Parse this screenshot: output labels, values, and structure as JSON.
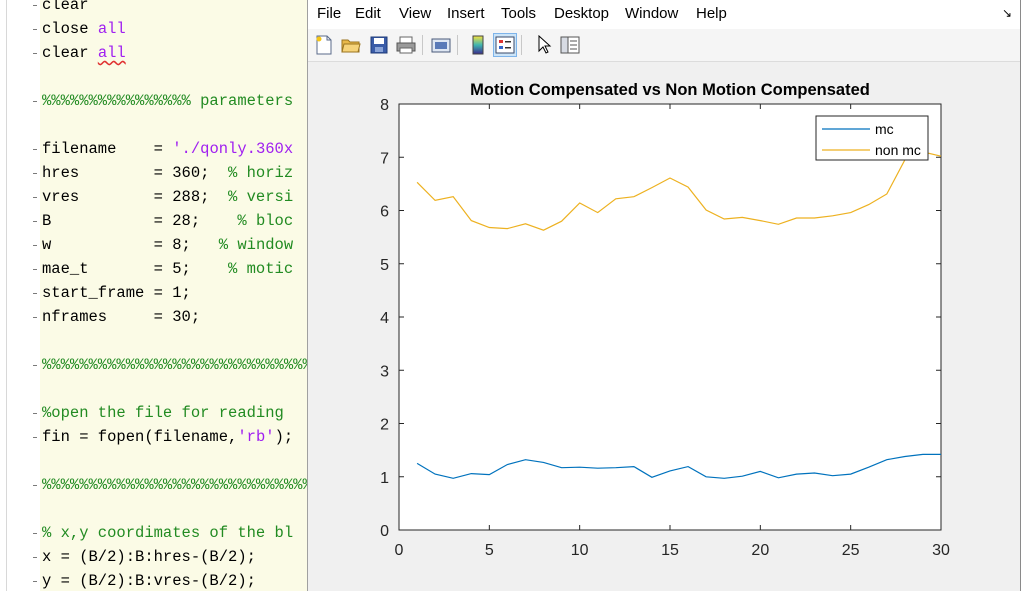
{
  "editor": {
    "lines": [
      [
        {
          "t": "clear",
          "c": "kw"
        }
      ],
      [
        {
          "t": "close ",
          "c": "kw"
        },
        {
          "t": "all",
          "c": "str"
        }
      ],
      [
        {
          "t": "clear ",
          "c": "kw"
        },
        {
          "t": "all",
          "c": "str",
          "squiggle": true
        }
      ],
      [],
      [
        {
          "t": "%%%%%%%%%%%%%%%% parameters",
          "c": "cmt"
        }
      ],
      [],
      [
        {
          "t": "filename    = ",
          "c": "kw"
        },
        {
          "t": "'./qonly.360x",
          "c": "str"
        }
      ],
      [
        {
          "t": "hres        = 360;  ",
          "c": "kw"
        },
        {
          "t": "% horiz",
          "c": "cmt"
        }
      ],
      [
        {
          "t": "vres        = 288;  ",
          "c": "kw"
        },
        {
          "t": "% versi",
          "c": "cmt"
        }
      ],
      [
        {
          "t": "B           = 28;    ",
          "c": "kw"
        },
        {
          "t": "% bloc",
          "c": "cmt"
        }
      ],
      [
        {
          "t": "w           = 8;   ",
          "c": "kw"
        },
        {
          "t": "% window",
          "c": "cmt"
        }
      ],
      [
        {
          "t": "mae_t       = 5;    ",
          "c": "kw"
        },
        {
          "t": "% motic",
          "c": "cmt"
        }
      ],
      [
        {
          "t": "start_frame = 1;",
          "c": "kw"
        }
      ],
      [
        {
          "t": "nframes     = 30;",
          "c": "kw"
        }
      ],
      [],
      [
        {
          "t": "%%%%%%%%%%%%%%%%%%%%%%%%%%%%%%%",
          "c": "cmt"
        }
      ],
      [],
      [
        {
          "t": "%open the file for reading",
          "c": "cmt"
        }
      ],
      [
        {
          "t": "fin = fopen(filename,",
          "c": "kw"
        },
        {
          "t": "'rb'",
          "c": "str"
        },
        {
          "t": ");",
          "c": "kw"
        }
      ],
      [],
      [
        {
          "t": "%%%%%%%%%%%%%%%%%%%%%%%%%%%%%%%",
          "c": "cmt"
        }
      ],
      [],
      [
        {
          "t": "% x,y coordimates of the bl",
          "c": "cmt"
        }
      ],
      [
        {
          "t": "x = (B/2):B:hres-(B/2);",
          "c": "kw"
        }
      ],
      [
        {
          "t": "y = (B/2):B:vres-(B/2);",
          "c": "kw"
        }
      ]
    ],
    "colors": {
      "kw": "#000000",
      "str": "#a020f0",
      "cmt": "#228b22"
    }
  },
  "figure": {
    "menu": [
      "File",
      "Edit",
      "View",
      "Insert",
      "Tools",
      "Desktop",
      "Window",
      "Help"
    ],
    "menu_dock_icon": "dock-arrow-icon",
    "toolbar": [
      {
        "name": "new-figure-icon",
        "active": false
      },
      {
        "name": "open-file-icon",
        "active": false
      },
      {
        "name": "save-figure-icon",
        "active": false
      },
      {
        "name": "print-figure-icon",
        "active": false
      },
      {
        "sep": true
      },
      {
        "name": "link-plot-icon",
        "active": false
      },
      {
        "sep": true
      },
      {
        "name": "insert-colorbar-icon",
        "active": false
      },
      {
        "name": "insert-legend-icon",
        "active": true
      },
      {
        "sep": true
      },
      {
        "name": "edit-plot-cursor-icon",
        "active": false
      },
      {
        "name": "property-inspector-icon",
        "active": false
      }
    ]
  },
  "chart_data": {
    "type": "line",
    "title": "Motion Compensated vs Non Motion Compensated",
    "xlabel": "",
    "ylabel": "",
    "xlim": [
      0,
      30
    ],
    "ylim": [
      0,
      8
    ],
    "xticks": [
      0,
      5,
      10,
      15,
      20,
      25,
      30
    ],
    "yticks": [
      0,
      1,
      2,
      3,
      4,
      5,
      6,
      7,
      8
    ],
    "grid": false,
    "legend_position": "top-right",
    "x": [
      1,
      2,
      3,
      4,
      5,
      6,
      7,
      8,
      9,
      10,
      11,
      12,
      13,
      14,
      15,
      16,
      17,
      18,
      19,
      20,
      21,
      22,
      23,
      24,
      25,
      26,
      27,
      28,
      29,
      30
    ],
    "series": [
      {
        "name": "mc",
        "color": "#0072bd",
        "values": [
          1.25,
          1.05,
          0.97,
          1.06,
          1.04,
          1.23,
          1.32,
          1.27,
          1.17,
          1.18,
          1.16,
          1.17,
          1.19,
          0.99,
          1.11,
          1.19,
          1.0,
          0.97,
          1.01,
          1.1,
          0.98,
          1.05,
          1.07,
          1.02,
          1.05,
          1.18,
          1.32,
          1.38,
          1.42,
          1.42
        ]
      },
      {
        "name": "non mc",
        "color": "#edb120",
        "values": [
          6.53,
          6.19,
          6.26,
          5.81,
          5.68,
          5.66,
          5.75,
          5.63,
          5.8,
          6.14,
          5.96,
          6.22,
          6.26,
          6.43,
          6.61,
          6.44,
          6.01,
          5.84,
          5.87,
          5.81,
          5.74,
          5.86,
          5.86,
          5.9,
          5.96,
          6.11,
          6.31,
          6.95,
          7.1,
          7.02
        ]
      }
    ]
  }
}
